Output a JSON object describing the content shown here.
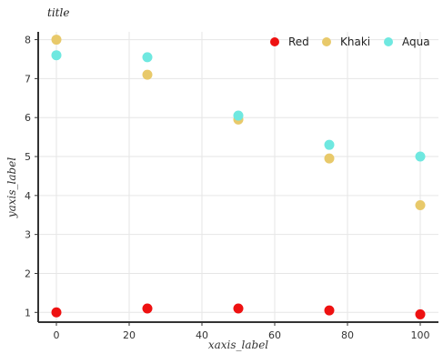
{
  "chart_data": {
    "type": "scatter",
    "title": "title",
    "xlabel": "xaxis_label",
    "ylabel": "yaxis_label",
    "x": [
      0,
      25,
      50,
      75,
      100
    ],
    "xlim": [
      -5,
      105
    ],
    "ylim": [
      0.75,
      8.2
    ],
    "xticks": [
      0,
      20,
      40,
      60,
      80,
      100
    ],
    "yticks": [
      1,
      2,
      3,
      4,
      5,
      6,
      7,
      8
    ],
    "grid": true,
    "legend_position": "top-right",
    "series": [
      {
        "name": "Red",
        "color": "#ee1111",
        "values": [
          1.0,
          1.1,
          1.1,
          1.05,
          0.95
        ]
      },
      {
        "name": "Khaki",
        "color": "#e8c96a",
        "values": [
          8.0,
          7.1,
          5.95,
          4.95,
          3.75
        ]
      },
      {
        "name": "Aqua",
        "color": "#6fe8e0",
        "values": [
          7.6,
          7.55,
          6.05,
          5.3,
          5.0
        ]
      }
    ]
  }
}
